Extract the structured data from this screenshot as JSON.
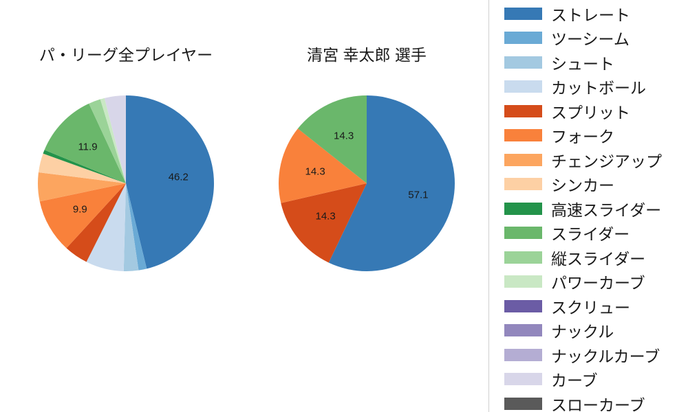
{
  "chart_data": [
    {
      "type": "pie",
      "key": "pa-league-all",
      "title": "パ・リーグ全プレイヤー",
      "start_angle_deg": 90,
      "direction": "clockwise",
      "units": "percent",
      "slices": [
        {
          "key": "straight",
          "label": "ストレート",
          "value": 46.2,
          "pct_label": "46.2",
          "color": "#3679b5"
        },
        {
          "key": "two-seam",
          "label": "ツーシーム",
          "value": 1.5,
          "pct_label": "",
          "color": "#6aaad5"
        },
        {
          "key": "shoot",
          "label": "シュート",
          "value": 2.7,
          "pct_label": "",
          "color": "#a3c9e1"
        },
        {
          "key": "cut-ball",
          "label": "カットボール",
          "value": 7.0,
          "pct_label": "",
          "color": "#c9dbee"
        },
        {
          "key": "split",
          "label": "スプリット",
          "value": 4.4,
          "pct_label": "",
          "color": "#d54c1a"
        },
        {
          "key": "fork",
          "label": "フォーク",
          "value": 9.9,
          "pct_label": "9.9",
          "color": "#f9813b"
        },
        {
          "key": "changeup",
          "label": "チェンジアップ",
          "value": 5.3,
          "pct_label": "",
          "color": "#fca55f"
        },
        {
          "key": "sinker",
          "label": "シンカー",
          "value": 3.5,
          "pct_label": "",
          "color": "#fdd0a4"
        },
        {
          "key": "fast-slider",
          "label": "高速スライダー",
          "value": 0.7,
          "pct_label": "",
          "color": "#23934a"
        },
        {
          "key": "slider",
          "label": "スライダー",
          "value": 11.9,
          "pct_label": "11.9",
          "color": "#6ab76b"
        },
        {
          "key": "vertical-slider",
          "label": "縦スライダー",
          "value": 2.2,
          "pct_label": "",
          "color": "#9bd398"
        },
        {
          "key": "power-curve",
          "label": "パワーカーブ",
          "value": 0.8,
          "pct_label": "",
          "color": "#c9e8c4"
        },
        {
          "key": "curve",
          "label": "カーブ",
          "value": 3.9,
          "pct_label": "",
          "color": "#d8d6e9"
        }
      ]
    },
    {
      "type": "pie",
      "key": "kiyomiya-kotaro",
      "title": "清宮 幸太郎  選手",
      "start_angle_deg": 90,
      "direction": "clockwise",
      "units": "percent",
      "slices": [
        {
          "key": "straight",
          "label": "ストレート",
          "value": 57.1,
          "pct_label": "57.1",
          "color": "#3679b5"
        },
        {
          "key": "split",
          "label": "スプリット",
          "value": 14.3,
          "pct_label": "14.3",
          "color": "#d54c1a"
        },
        {
          "key": "fork",
          "label": "フォーク",
          "value": 14.3,
          "pct_label": "14.3",
          "color": "#f9813b"
        },
        {
          "key": "slider",
          "label": "スライダー",
          "value": 14.3,
          "pct_label": "14.3",
          "color": "#6ab76b"
        }
      ]
    }
  ],
  "legend": {
    "items": [
      {
        "key": "straight",
        "label": "ストレート",
        "color": "#3679b5"
      },
      {
        "key": "two-seam",
        "label": "ツーシーム",
        "color": "#6aaad5"
      },
      {
        "key": "shoot",
        "label": "シュート",
        "color": "#a3c9e1"
      },
      {
        "key": "cut-ball",
        "label": "カットボール",
        "color": "#c9dbee"
      },
      {
        "key": "split",
        "label": "スプリット",
        "color": "#d54c1a"
      },
      {
        "key": "fork",
        "label": "フォーク",
        "color": "#f9813b"
      },
      {
        "key": "changeup",
        "label": "チェンジアップ",
        "color": "#fca55f"
      },
      {
        "key": "sinker",
        "label": "シンカー",
        "color": "#fdd0a4"
      },
      {
        "key": "fast-slider",
        "label": "高速スライダー",
        "color": "#23934a"
      },
      {
        "key": "slider",
        "label": "スライダー",
        "color": "#6ab76b"
      },
      {
        "key": "vertical-slider",
        "label": "縦スライダー",
        "color": "#9bd398"
      },
      {
        "key": "power-curve",
        "label": "パワーカーブ",
        "color": "#c9e8c4"
      },
      {
        "key": "screw",
        "label": "スクリュー",
        "color": "#6b5ca5"
      },
      {
        "key": "knuckle",
        "label": "ナックル",
        "color": "#9287bd"
      },
      {
        "key": "knuckle-curve",
        "label": "ナックルカーブ",
        "color": "#b4add3"
      },
      {
        "key": "curve",
        "label": "カーブ",
        "color": "#d8d6e9"
      },
      {
        "key": "slow-curve",
        "label": "スローカーブ",
        "color": "#5a5a5a"
      }
    ]
  }
}
